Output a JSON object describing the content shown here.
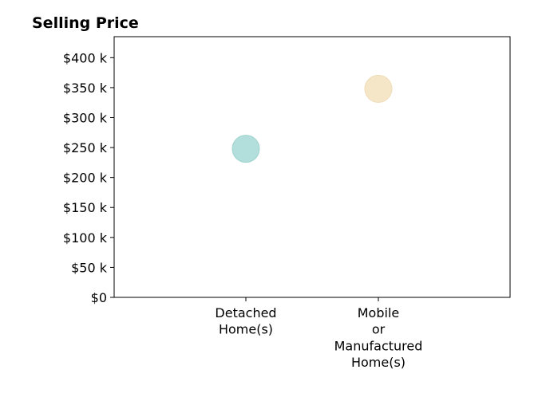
{
  "chart_data": {
    "type": "scatter",
    "title": "Selling Price",
    "xlabel": "",
    "ylabel": "",
    "categories": [
      [
        "Detached",
        "Home(s)"
      ],
      [
        "Mobile",
        "or",
        "Manufactured",
        "Home(s)"
      ]
    ],
    "values": [
      248000,
      348000
    ],
    "point_colors": [
      "#b2dfdb",
      "#f5e6c8"
    ],
    "point_stroke_colors": [
      "#9fd3ce",
      "#efdcb8"
    ],
    "ylim": [
      0,
      435000
    ],
    "yticks": [
      0,
      50000,
      100000,
      150000,
      200000,
      250000,
      300000,
      350000,
      400000
    ],
    "ytick_labels": [
      "$0",
      "$50 k",
      "$100 k",
      "$150 k",
      "$200 k",
      "$250 k",
      "$300 k",
      "$350 k",
      "$400 k"
    ],
    "grid": false,
    "legend": "none"
  }
}
